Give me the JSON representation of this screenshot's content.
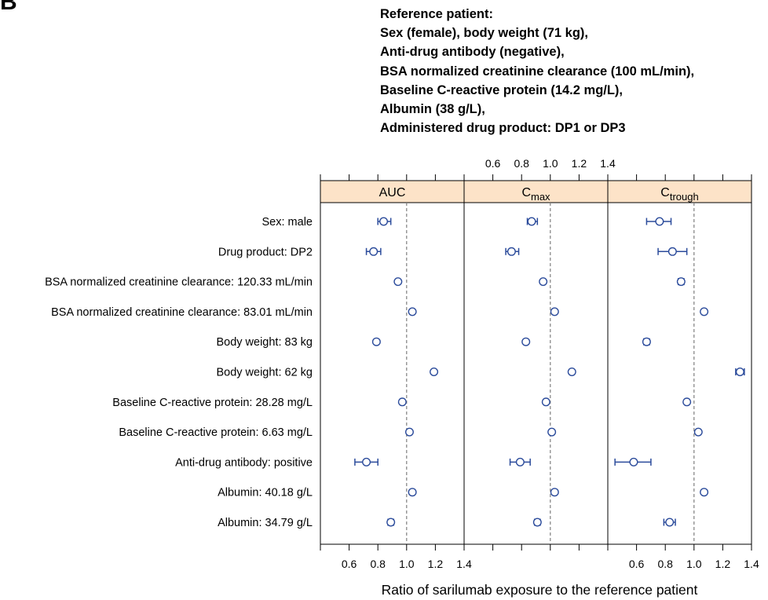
{
  "panel_label": "B",
  "reference": {
    "lines": [
      "Reference patient:",
      "Sex (female), body weight (71 kg),",
      "Anti-drug antibody (negative),",
      "BSA normalized creatinine clearance (100 mL/min),",
      "Baseline C-reactive protein (14.2 mg/L),",
      "Albumin (38 g/L),",
      "Administered drug product: DP1 or DP3"
    ]
  },
  "colors": {
    "marker": "#2b4b9b",
    "strip": "#fde3c8",
    "reference_line": "#7f7f7f"
  },
  "chart_data": {
    "type": "forest",
    "xlabel": "Ratio of sarilumab exposure to the reference patient",
    "xlim": [
      0.4,
      1.4
    ],
    "xticks": [
      0.6,
      0.8,
      1.0,
      1.2,
      1.4
    ],
    "xtick_labels": [
      "0.6",
      "0.8",
      "1.0",
      "1.2",
      "1.4"
    ],
    "reference_value": 1.0,
    "categories": [
      "Sex: male",
      "Drug product: DP2",
      "BSA normalized creatinine clearance: 120.33 mL/min",
      "BSA normalized creatinine clearance: 83.01 mL/min",
      "Body weight: 83 kg",
      "Body weight: 62 kg",
      "Baseline C-reactive protein: 28.28 mg/L",
      "Baseline C-reactive protein: 6.63 mg/L",
      "Anti-drug antibody: positive",
      "Albumin: 40.18 g/L",
      "Albumin: 34.79 g/L"
    ],
    "panels": [
      {
        "name": "AUC",
        "subscript": "",
        "estimate": [
          0.84,
          0.77,
          0.94,
          1.04,
          0.79,
          1.19,
          0.97,
          1.02,
          0.72,
          1.04,
          0.89
        ],
        "lower": [
          0.8,
          0.72,
          0.93,
          1.03,
          0.78,
          1.18,
          0.96,
          1.01,
          0.64,
          1.03,
          0.87
        ],
        "upper": [
          0.89,
          0.82,
          0.95,
          1.05,
          0.8,
          1.2,
          0.98,
          1.03,
          0.8,
          1.05,
          0.91
        ]
      },
      {
        "name": "C",
        "subscript": "max",
        "estimate": [
          0.87,
          0.73,
          0.95,
          1.03,
          0.83,
          1.15,
          0.97,
          1.01,
          0.79,
          1.03,
          0.91
        ],
        "lower": [
          0.84,
          0.69,
          0.94,
          1.02,
          0.82,
          1.14,
          0.96,
          1.0,
          0.72,
          1.02,
          0.89
        ],
        "upper": [
          0.91,
          0.78,
          0.96,
          1.04,
          0.84,
          1.16,
          0.98,
          1.02,
          0.86,
          1.04,
          0.93
        ]
      },
      {
        "name": "C",
        "subscript": "trough",
        "estimate": [
          0.76,
          0.85,
          0.91,
          1.07,
          0.67,
          1.32,
          0.95,
          1.03,
          0.58,
          1.07,
          0.83
        ],
        "lower": [
          0.67,
          0.75,
          0.89,
          1.06,
          0.65,
          1.29,
          0.94,
          1.02,
          0.45,
          1.06,
          0.79
        ],
        "upper": [
          0.84,
          0.95,
          0.93,
          1.08,
          0.69,
          1.35,
          0.96,
          1.04,
          0.7,
          1.08,
          0.87
        ]
      }
    ]
  }
}
